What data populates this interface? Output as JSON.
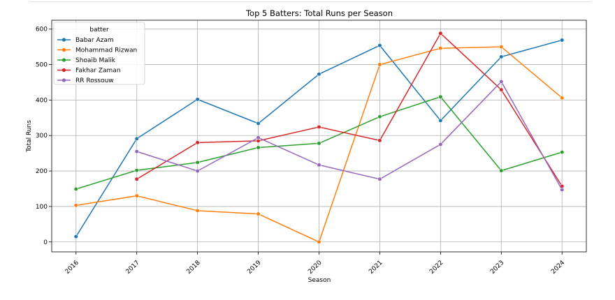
{
  "chart_data": {
    "type": "line",
    "title": "Top 5 Batters: Total Runs per Season",
    "xlabel": "Season",
    "ylabel": "Total Runs",
    "x": [
      2016,
      2017,
      2018,
      2019,
      2020,
      2021,
      2022,
      2023,
      2024
    ],
    "x_tick_labels": [
      "2016",
      "2017",
      "2018",
      "2019",
      "2020",
      "2021",
      "2022",
      "2023",
      "2024"
    ],
    "y_ticks": [
      0,
      100,
      200,
      300,
      400,
      500,
      600
    ],
    "y_tick_labels": [
      "0",
      "100",
      "200",
      "300",
      "400",
      "500",
      "600"
    ],
    "xlim": [
      2015.6,
      2024.4
    ],
    "ylim": [
      -28,
      625
    ],
    "grid": true,
    "legend_title": "batter",
    "legend_placement": "top-left",
    "series": [
      {
        "name": "Babar Azam",
        "color": "#1f77b4",
        "x": [
          2016,
          2017,
          2018,
          2019,
          2020,
          2021,
          2022,
          2023,
          2024
        ],
        "values": [
          15,
          291,
          402,
          334,
          473,
          554,
          342,
          522,
          569
        ]
      },
      {
        "name": "Mohammad Rizwan",
        "color": "#ff7f0e",
        "x": [
          2016,
          2017,
          2018,
          2019,
          2020,
          2021,
          2022,
          2023,
          2024
        ],
        "values": [
          103,
          130,
          88,
          79,
          0,
          500,
          546,
          550,
          406
        ]
      },
      {
        "name": "Shoaib Malik",
        "color": "#2ca02c",
        "x": [
          2016,
          2017,
          2018,
          2019,
          2020,
          2021,
          2022,
          2023,
          2024
        ],
        "values": [
          149,
          202,
          224,
          266,
          278,
          353,
          409,
          201,
          253
        ]
      },
      {
        "name": "Fakhar Zaman",
        "color": "#d62728",
        "x": [
          2017,
          2018,
          2019,
          2020,
          2021,
          2022,
          2023,
          2024
        ],
        "values": [
          177,
          280,
          285,
          324,
          286,
          588,
          429,
          157
        ]
      },
      {
        "name": "RR Rossouw",
        "color": "#9467bd",
        "x": [
          2017,
          2018,
          2019,
          2020,
          2021,
          2022,
          2023,
          2024
        ],
        "values": [
          255,
          200,
          294,
          217,
          177,
          275,
          452,
          147
        ]
      }
    ]
  }
}
